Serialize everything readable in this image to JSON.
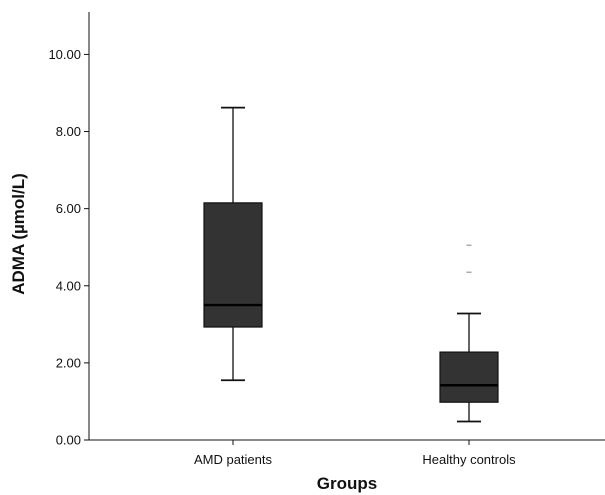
{
  "chart_data": {
    "type": "box",
    "title": "",
    "xlabel": "Groups",
    "ylabel": "ADMA (µmol/L)",
    "ylim": [
      0,
      11.1
    ],
    "yticks": [
      0,
      2,
      4,
      6,
      8,
      10
    ],
    "ytick_labels": [
      "0.00",
      "2.00",
      "4.00",
      "6.00",
      "8.00",
      "10.00"
    ],
    "grid": false,
    "categories": [
      "AMD patients",
      "Healthy controls"
    ],
    "boxes": [
      {
        "category": "AMD patients",
        "min": 1.55,
        "q1": 2.93,
        "median": 3.5,
        "q3": 6.15,
        "max": 8.62,
        "outliers": []
      },
      {
        "category": "Healthy controls",
        "min": 0.48,
        "q1": 0.98,
        "median": 1.42,
        "q3": 2.28,
        "max": 3.28,
        "outliers": [
          4.35,
          5.05
        ]
      }
    ],
    "colors": {
      "box_fill": "#333333",
      "line": "#111111",
      "outlier": "#aaaaaa",
      "median": "#000000"
    }
  }
}
